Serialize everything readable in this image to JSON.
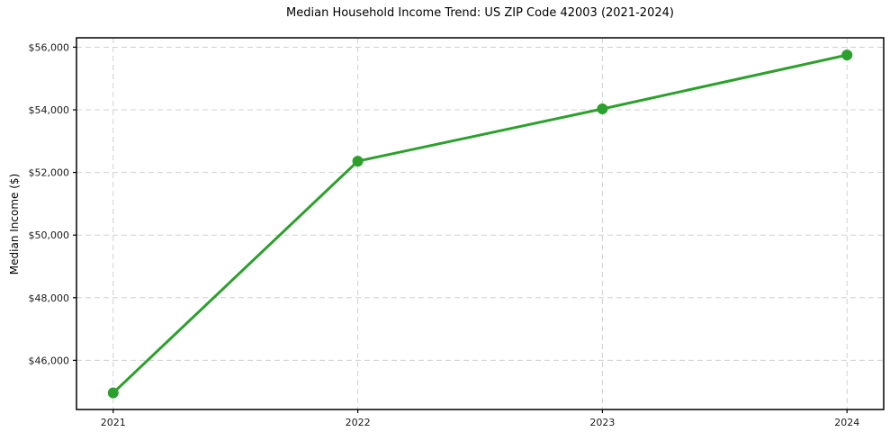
{
  "chart_data": {
    "type": "line",
    "title": "Median Household Income Trend: US ZIP Code 42003 (2021-2024)",
    "xlabel": "",
    "ylabel": "Median Income ($)",
    "x": [
      2021,
      2022,
      2023,
      2024
    ],
    "values": [
      44960,
      52360,
      54030,
      55750
    ],
    "xticks": [
      {
        "value": 2021,
        "label": "2021"
      },
      {
        "value": 2022,
        "label": "2022"
      },
      {
        "value": 2023,
        "label": "2023"
      },
      {
        "value": 2024,
        "label": "2024"
      }
    ],
    "yticks": [
      {
        "value": 46000,
        "label": "$46,000"
      },
      {
        "value": 48000,
        "label": "$48,000"
      },
      {
        "value": 50000,
        "label": "$50,000"
      },
      {
        "value": 52000,
        "label": "$52,000"
      },
      {
        "value": 54000,
        "label": "$54,000"
      },
      {
        "value": 56000,
        "label": "$56,000"
      }
    ],
    "xlim": [
      2020.85,
      2024.15
    ],
    "ylim": [
      44430,
      56300
    ],
    "grid": true,
    "grid_style": "dashed",
    "legend": "none",
    "marker": "circle",
    "marker_radius": 6,
    "line_width": 3,
    "colors": {
      "line": "#2ca02c",
      "marker": "#2ca02c",
      "grid": "#d0d0d0",
      "spine": "#000000",
      "tick_text": "#1a1a1a",
      "background": "#ffffff"
    }
  }
}
